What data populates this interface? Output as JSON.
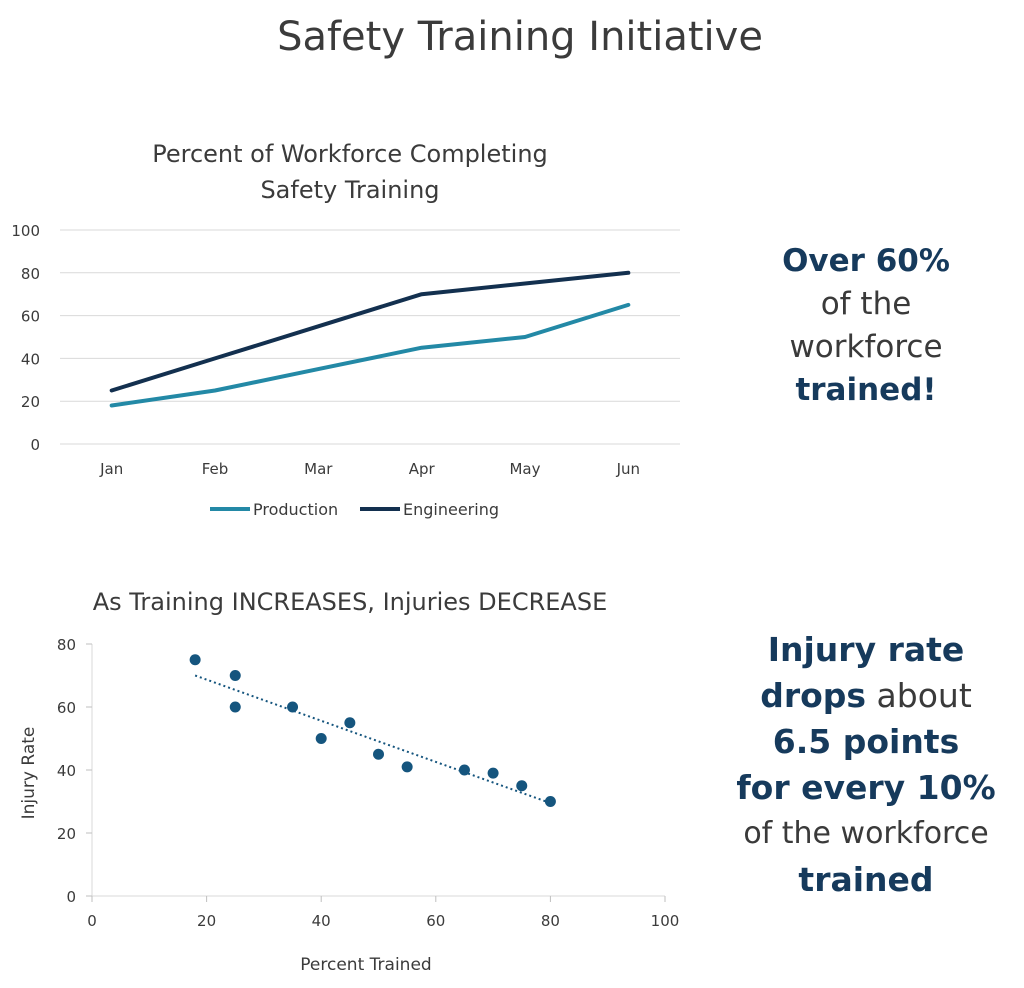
{
  "page_title": "Safety Training Initiative",
  "chart_data": [
    {
      "type": "line",
      "title_line1": "Percent of Workforce Completing",
      "title_line2": "Safety Training",
      "categories": [
        "Jan",
        "Feb",
        "Mar",
        "Apr",
        "May",
        "Jun"
      ],
      "series": [
        {
          "name": "Production",
          "values": [
            18,
            25,
            35,
            45,
            50,
            65
          ],
          "color": "#2389a6"
        },
        {
          "name": "Engineering",
          "values": [
            25,
            40,
            55,
            70,
            75,
            80
          ],
          "color": "#13304f"
        }
      ],
      "ylim": [
        0,
        100
      ],
      "yticks": [
        0,
        20,
        40,
        60,
        80,
        100
      ],
      "legend": "bottom",
      "grid": true
    },
    {
      "type": "scatter",
      "title": "As Training INCREASES, Injuries DECREASE",
      "xlabel": "Percent Trained",
      "ylabel": "Injury Rate",
      "xlim": [
        0,
        100
      ],
      "ylim": [
        0,
        80
      ],
      "xticks": [
        0,
        20,
        40,
        60,
        80,
        100
      ],
      "yticks": [
        0,
        20,
        40,
        60,
        80
      ],
      "points": [
        {
          "x": 18,
          "y": 75
        },
        {
          "x": 25,
          "y": 70
        },
        {
          "x": 25,
          "y": 60
        },
        {
          "x": 35,
          "y": 60
        },
        {
          "x": 40,
          "y": 50
        },
        {
          "x": 45,
          "y": 55
        },
        {
          "x": 50,
          "y": 45
        },
        {
          "x": 55,
          "y": 41
        },
        {
          "x": 65,
          "y": 40
        },
        {
          "x": 70,
          "y": 39
        },
        {
          "x": 75,
          "y": 35
        },
        {
          "x": 80,
          "y": 30
        }
      ],
      "trendline": {
        "x_start": 18,
        "y_start": 70,
        "x_end": 80,
        "y_end": 29.5
      },
      "point_color": "#15557e"
    }
  ],
  "callout1": {
    "line1": "Over 60%",
    "line2": "of the",
    "line3": "workforce",
    "line4": "trained!"
  },
  "callout2": {
    "line1": "Injury rate",
    "line2_bold": "drops",
    "line2_rest": " about",
    "line3": "6.5 points",
    "line4": "for every 10%",
    "line5": "of the workforce",
    "line6": "trained"
  }
}
